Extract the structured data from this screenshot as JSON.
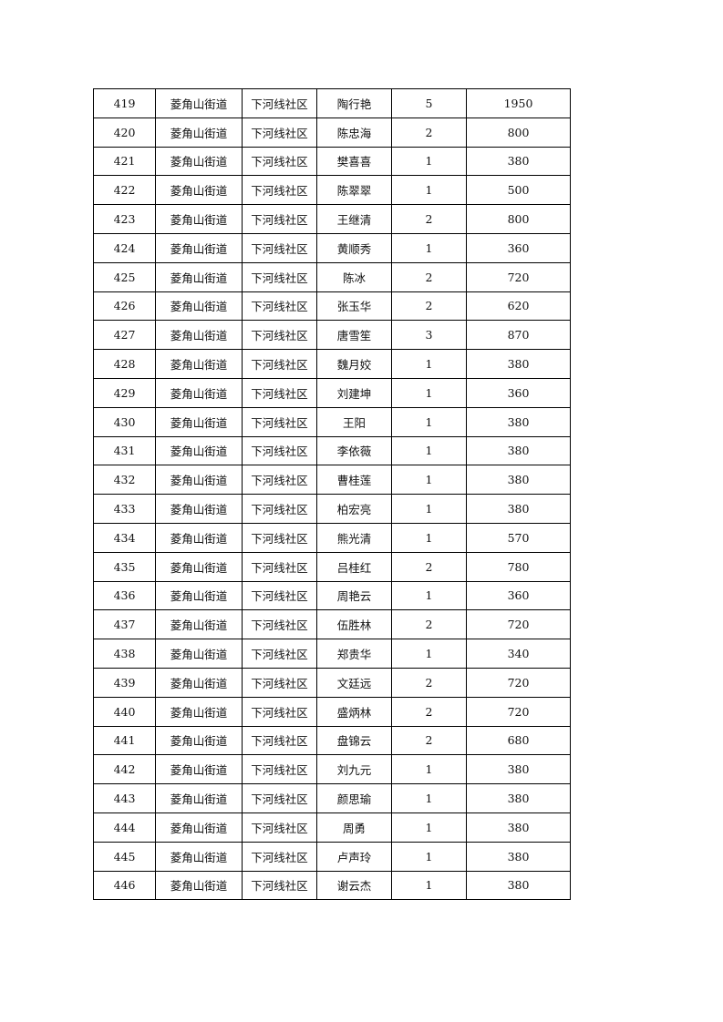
{
  "table": {
    "rows": [
      [
        "419",
        "菱角山街道",
        "下河线社区",
        "陶行艳",
        "5",
        "1950"
      ],
      [
        "420",
        "菱角山街道",
        "下河线社区",
        "陈忠海",
        "2",
        "800"
      ],
      [
        "421",
        "菱角山街道",
        "下河线社区",
        "樊喜喜",
        "1",
        "380"
      ],
      [
        "422",
        "菱角山街道",
        "下河线社区",
        "陈翠翠",
        "1",
        "500"
      ],
      [
        "423",
        "菱角山街道",
        "下河线社区",
        "王继清",
        "2",
        "800"
      ],
      [
        "424",
        "菱角山街道",
        "下河线社区",
        "黄顺秀",
        "1",
        "360"
      ],
      [
        "425",
        "菱角山街道",
        "下河线社区",
        "陈冰",
        "2",
        "720"
      ],
      [
        "426",
        "菱角山街道",
        "下河线社区",
        "张玉华",
        "2",
        "620"
      ],
      [
        "427",
        "菱角山街道",
        "下河线社区",
        "唐雪笙",
        "3",
        "870"
      ],
      [
        "428",
        "菱角山街道",
        "下河线社区",
        "魏月姣",
        "1",
        "380"
      ],
      [
        "429",
        "菱角山街道",
        "下河线社区",
        "刘建坤",
        "1",
        "360"
      ],
      [
        "430",
        "菱角山街道",
        "下河线社区",
        "王阳",
        "1",
        "380"
      ],
      [
        "431",
        "菱角山街道",
        "下河线社区",
        "李依薇",
        "1",
        "380"
      ],
      [
        "432",
        "菱角山街道",
        "下河线社区",
        "曹桂莲",
        "1",
        "380"
      ],
      [
        "433",
        "菱角山街道",
        "下河线社区",
        "柏宏亮",
        "1",
        "380"
      ],
      [
        "434",
        "菱角山街道",
        "下河线社区",
        "熊光清",
        "1",
        "570"
      ],
      [
        "435",
        "菱角山街道",
        "下河线社区",
        "吕桂红",
        "2",
        "780"
      ],
      [
        "436",
        "菱角山街道",
        "下河线社区",
        "周艳云",
        "1",
        "360"
      ],
      [
        "437",
        "菱角山街道",
        "下河线社区",
        "伍胜林",
        "2",
        "720"
      ],
      [
        "438",
        "菱角山街道",
        "下河线社区",
        "郑贵华",
        "1",
        "340"
      ],
      [
        "439",
        "菱角山街道",
        "下河线社区",
        "文廷远",
        "2",
        "720"
      ],
      [
        "440",
        "菱角山街道",
        "下河线社区",
        "盛炳林",
        "2",
        "720"
      ],
      [
        "441",
        "菱角山街道",
        "下河线社区",
        "盘锦云",
        "2",
        "680"
      ],
      [
        "442",
        "菱角山街道",
        "下河线社区",
        "刘九元",
        "1",
        "380"
      ],
      [
        "443",
        "菱角山街道",
        "下河线社区",
        "颜思瑜",
        "1",
        "380"
      ],
      [
        "444",
        "菱角山街道",
        "下河线社区",
        "周勇",
        "1",
        "380"
      ],
      [
        "445",
        "菱角山街道",
        "下河线社区",
        "卢声玲",
        "1",
        "380"
      ],
      [
        "446",
        "菱角山街道",
        "下河线社区",
        "谢云杰",
        "1",
        "380"
      ]
    ]
  }
}
